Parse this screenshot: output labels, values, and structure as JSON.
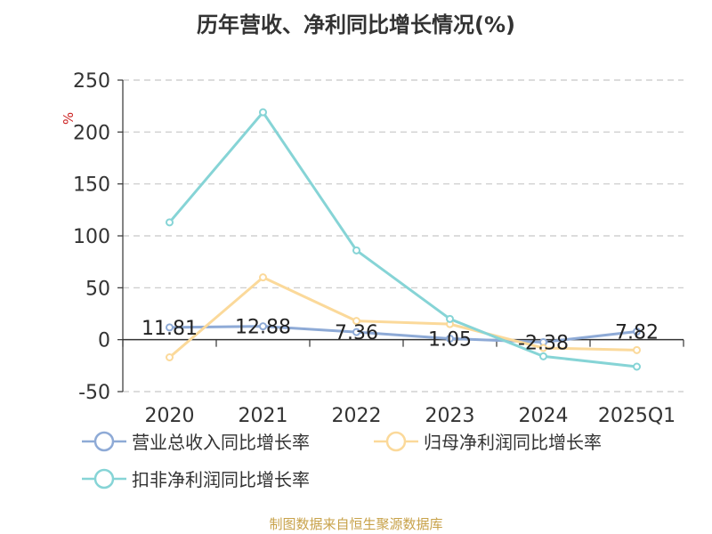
{
  "chart_data": {
    "type": "line",
    "title": "历年营收、净利同比增长情况(%)",
    "ylabel": "%",
    "categories": [
      "2020",
      "2021",
      "2022",
      "2023",
      "2024",
      "2025Q1"
    ],
    "yticks": [
      "250",
      "200",
      "150",
      "100",
      "50",
      "0",
      "-50"
    ],
    "ylim": [
      -50,
      250
    ],
    "grid": true,
    "legend_position": "bottom-left",
    "series": [
      {
        "name": "营业总收入同比增长率",
        "color": "#8eaad6",
        "values": [
          11.81,
          12.88,
          7.36,
          1.05,
          -2.38,
          7.82
        ],
        "labels": [
          "11.81",
          "12.88",
          "7.36",
          "1.05",
          "-2.38",
          "7.82"
        ]
      },
      {
        "name": "归母净利润同比增长率",
        "color": "#fbd99a",
        "values": [
          -17,
          60,
          18,
          15,
          -8,
          -10
        ]
      },
      {
        "name": "扣非净利润同比增长率",
        "color": "#86d4d6",
        "values": [
          113,
          219,
          86,
          20,
          -16,
          -26
        ]
      }
    ]
  },
  "footer": {
    "source": "制图数据来自恒生聚源数据库"
  }
}
